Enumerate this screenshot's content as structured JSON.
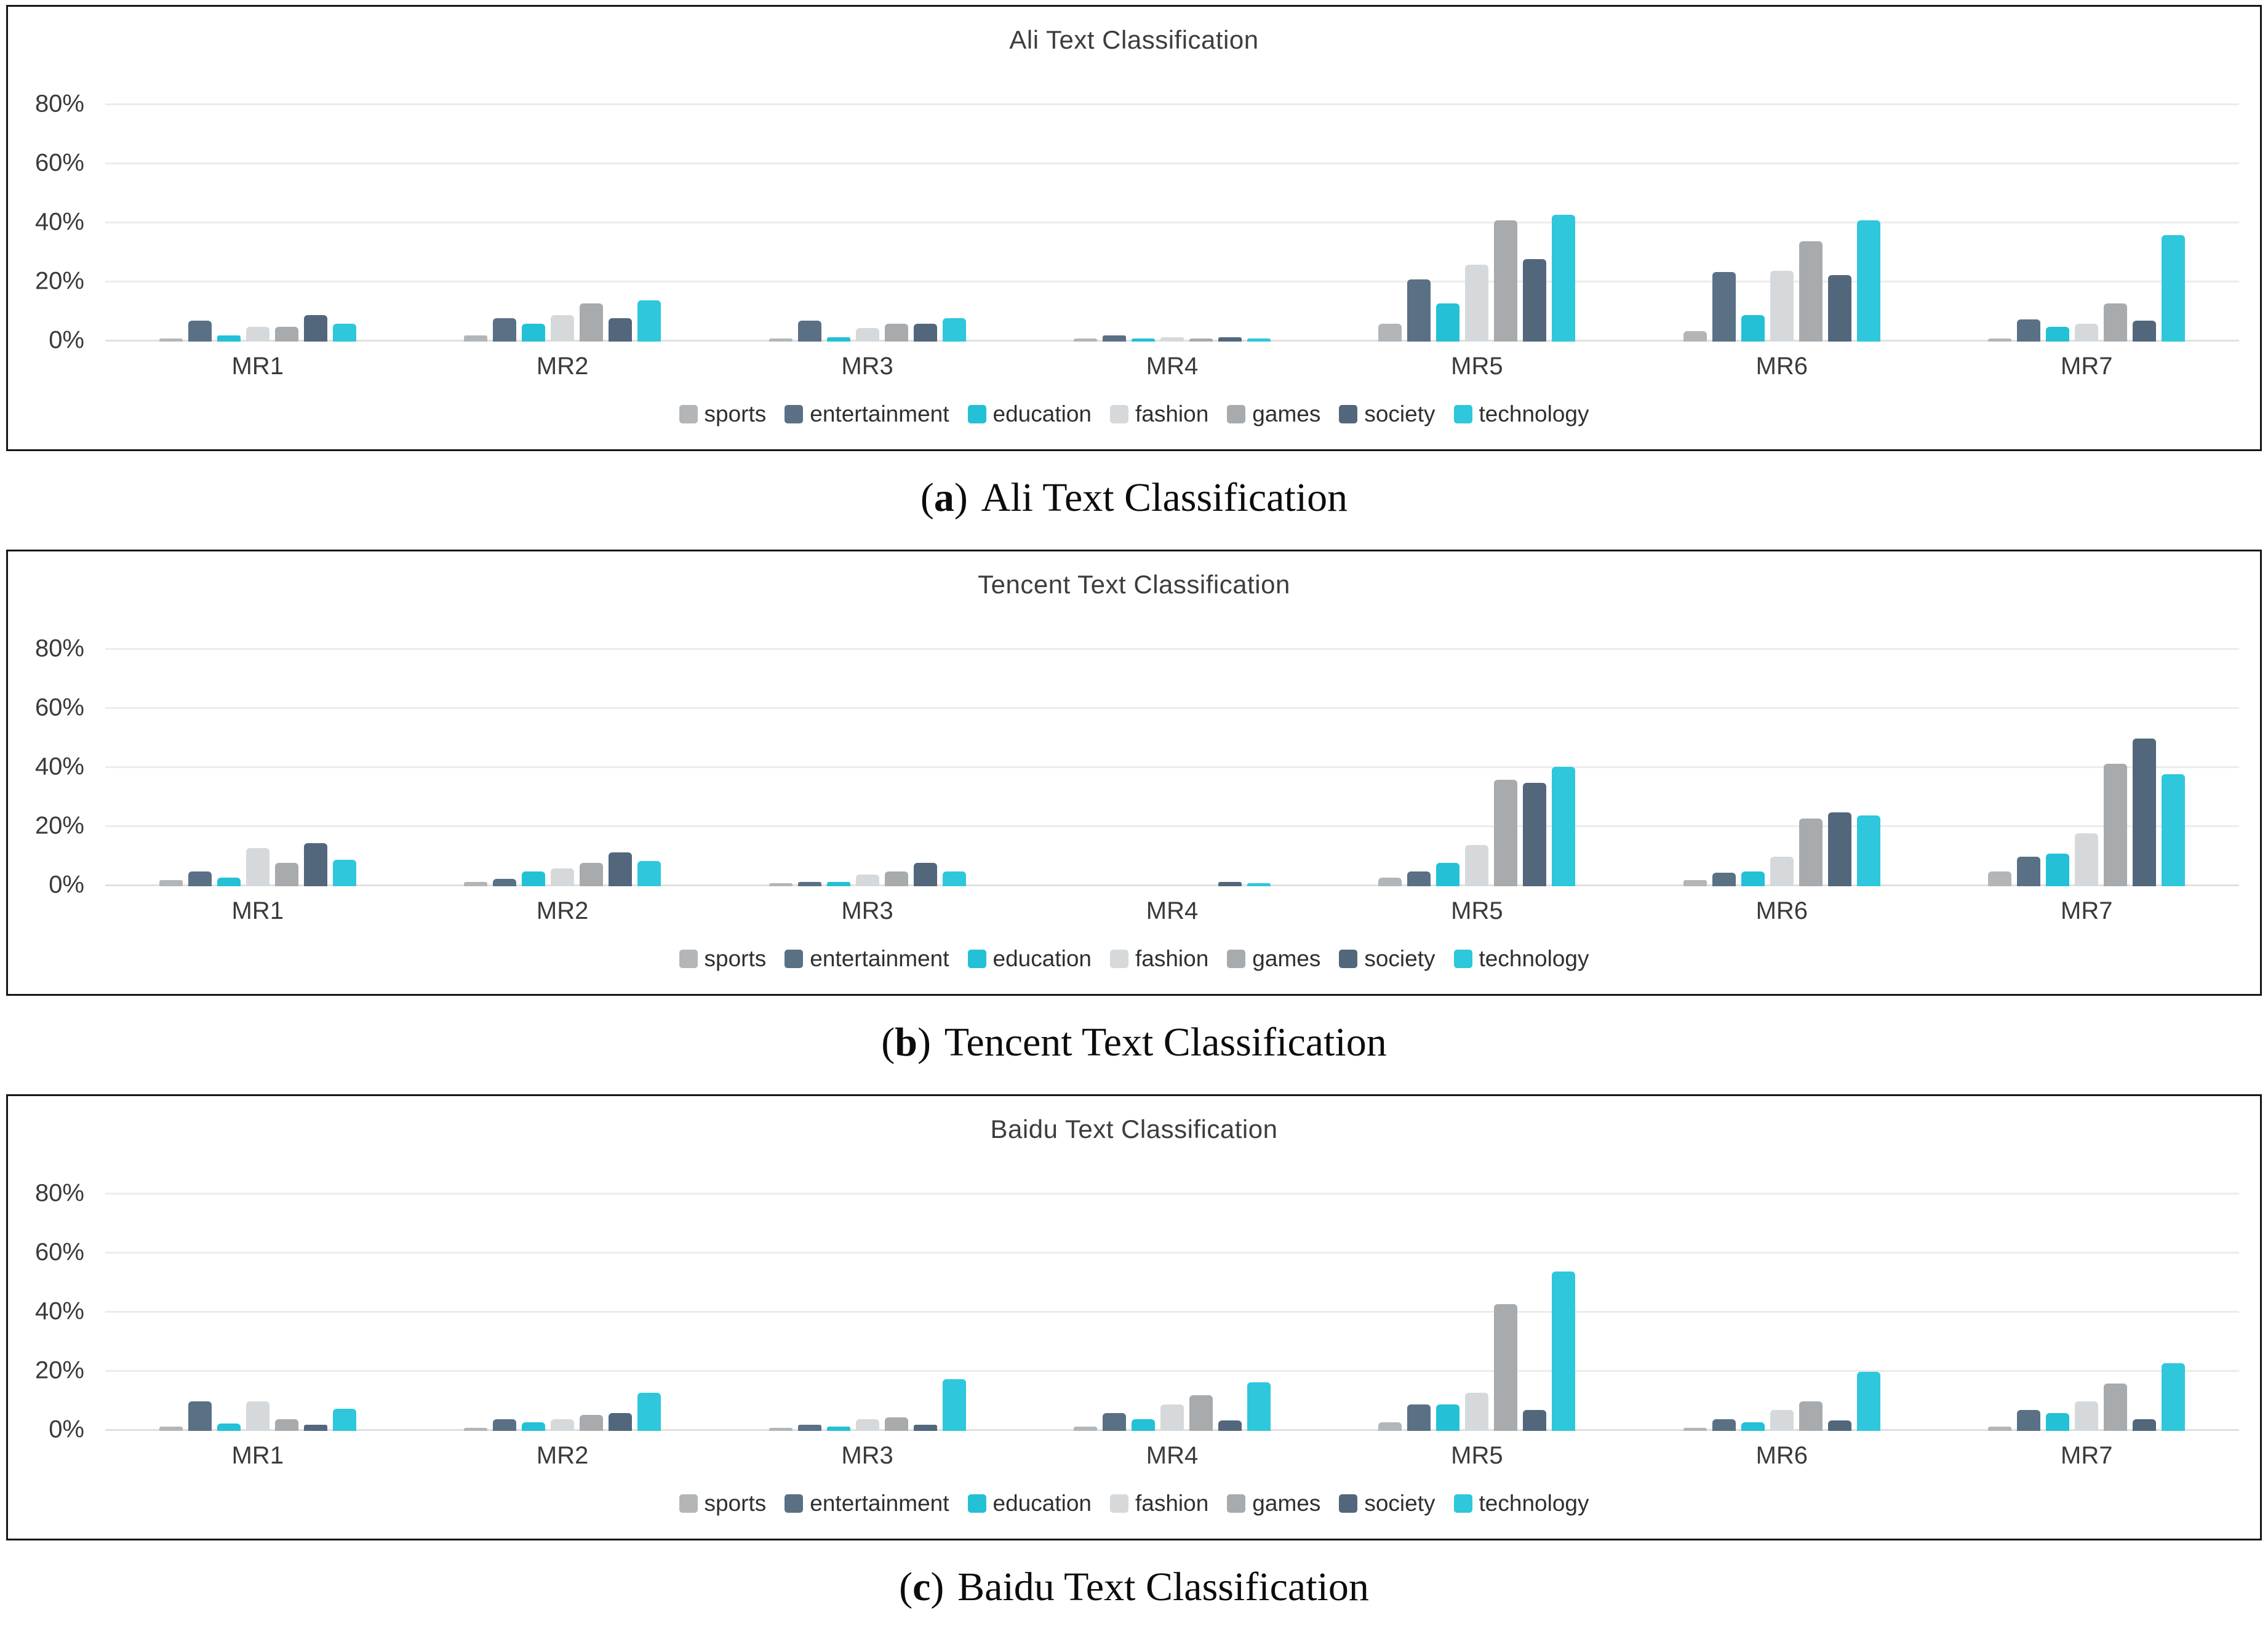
{
  "axis": {
    "ticks": [
      {
        "v": 0,
        "label": "0%"
      },
      {
        "v": 20,
        "label": "20%"
      },
      {
        "v": 40,
        "label": "40%"
      },
      {
        "v": 60,
        "label": "60%"
      },
      {
        "v": 80,
        "label": "80%"
      }
    ],
    "ylim": [
      0,
      80
    ],
    "grid": "horizontal"
  },
  "series_colors": {
    "sports": "#b3b6b8",
    "entertainment": "#5a7085",
    "education": "#23c0d6",
    "fashion": "#d6d9db",
    "games": "#a8abad",
    "society": "#52677c",
    "technology": "#2ec7dc"
  },
  "chart_data": [
    {
      "type": "bar",
      "title": "Ali Text Classification",
      "caption": {
        "open": "(",
        "letter": "a",
        "close": ")",
        "text": "Ali Text Classification"
      },
      "categories": [
        "MR1",
        "MR2",
        "MR3",
        "MR4",
        "MR5",
        "MR6",
        "MR7"
      ],
      "ylim": [
        0,
        80
      ],
      "legend_position": "bottom",
      "series": [
        {
          "name": "sports",
          "values": [
            1,
            2,
            1,
            1,
            6,
            3.5,
            1
          ]
        },
        {
          "name": "entertainment",
          "values": [
            7,
            8,
            7,
            2,
            21,
            23.5,
            7.5
          ]
        },
        {
          "name": "education",
          "values": [
            2,
            6,
            1.5,
            1,
            13,
            9,
            5
          ]
        },
        {
          "name": "fashion",
          "values": [
            5,
            9,
            4.5,
            1.5,
            26,
            24,
            6
          ]
        },
        {
          "name": "games",
          "values": [
            5,
            13,
            6,
            1,
            41,
            34,
            13
          ]
        },
        {
          "name": "society",
          "values": [
            9,
            8,
            6,
            1.5,
            28,
            22.5,
            7
          ]
        },
        {
          "name": "technology",
          "values": [
            6,
            14,
            8,
            1,
            43,
            41,
            36
          ]
        }
      ]
    },
    {
      "type": "bar",
      "title": "Tencent Text Classification",
      "caption": {
        "open": "(",
        "letter": "b",
        "close": ")",
        "text": "Tencent Text Classification"
      },
      "categories": [
        "MR1",
        "MR2",
        "MR3",
        "MR4",
        "MR5",
        "MR6",
        "MR7"
      ],
      "ylim": [
        0,
        80
      ],
      "legend_position": "bottom",
      "series": [
        {
          "name": "sports",
          "values": [
            2,
            1.5,
            1,
            0,
            3,
            2,
            5
          ]
        },
        {
          "name": "entertainment",
          "values": [
            5,
            2.5,
            1.5,
            0,
            5,
            4.5,
            10
          ]
        },
        {
          "name": "education",
          "values": [
            3,
            5,
            1.5,
            0,
            8,
            5,
            11
          ]
        },
        {
          "name": "fashion",
          "values": [
            13,
            6,
            4,
            0,
            14,
            10,
            18
          ]
        },
        {
          "name": "games",
          "values": [
            8,
            8,
            5,
            0,
            36,
            23,
            41.5
          ]
        },
        {
          "name": "society",
          "values": [
            14.5,
            11.5,
            8,
            1.5,
            35,
            25,
            50
          ]
        },
        {
          "name": "technology",
          "values": [
            9,
            8.5,
            5,
            1,
            40.5,
            24,
            38
          ]
        }
      ]
    },
    {
      "type": "bar",
      "title": "Baidu Text Classification",
      "caption": {
        "open": "(",
        "letter": "c",
        "close": ")",
        "text": "Baidu Text Classification"
      },
      "categories": [
        "MR1",
        "MR2",
        "MR3",
        "MR4",
        "MR5",
        "MR6",
        "MR7"
      ],
      "ylim": [
        0,
        80
      ],
      "legend_position": "bottom",
      "series": [
        {
          "name": "sports",
          "values": [
            1.5,
            1,
            1,
            1.5,
            3,
            1,
            1.5
          ]
        },
        {
          "name": "entertainment",
          "values": [
            10,
            4,
            2,
            6,
            9,
            4,
            7
          ]
        },
        {
          "name": "education",
          "values": [
            2.5,
            3,
            1.5,
            4,
            9,
            3,
            6
          ]
        },
        {
          "name": "fashion",
          "values": [
            10,
            4,
            4,
            9,
            13,
            7,
            10
          ]
        },
        {
          "name": "games",
          "values": [
            4,
            5.5,
            4.5,
            12,
            43,
            10,
            16
          ]
        },
        {
          "name": "society",
          "values": [
            2,
            6,
            2,
            3.5,
            7,
            3.5,
            4
          ]
        },
        {
          "name": "technology",
          "values": [
            7.5,
            13,
            17.5,
            16.5,
            54,
            20,
            23
          ]
        }
      ]
    }
  ]
}
